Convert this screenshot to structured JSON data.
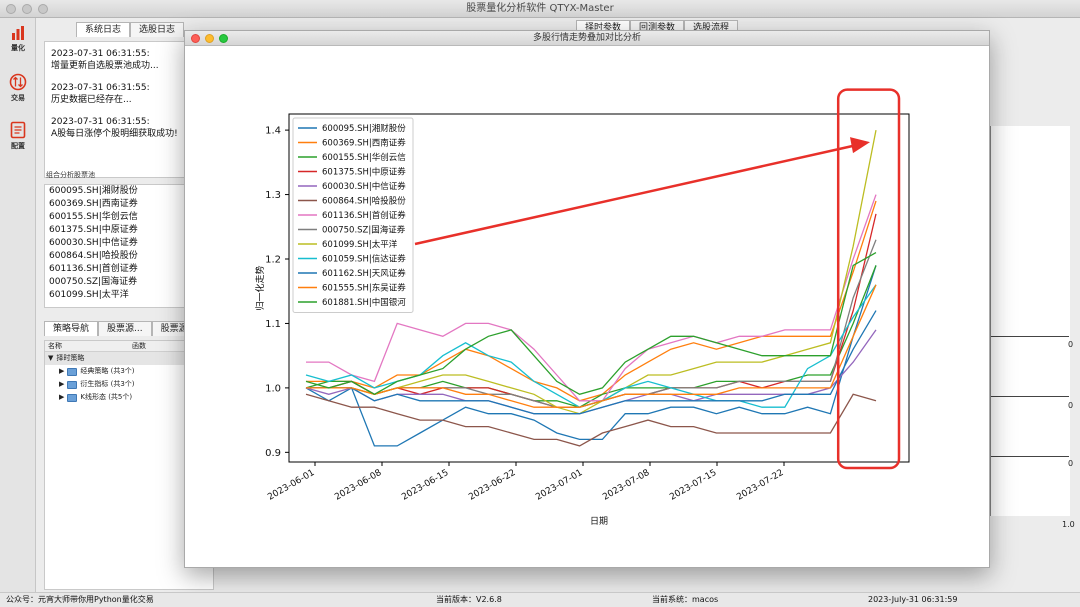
{
  "app": {
    "title": "股票量化分析软件 QTYX-Master"
  },
  "sidebar": {
    "items": [
      {
        "label": "量化",
        "icon": "bar-chart-icon"
      },
      {
        "label": "交易",
        "icon": "exchange-icon"
      },
      {
        "label": "配置",
        "icon": "document-icon"
      }
    ]
  },
  "left": {
    "tabs": [
      "系统日志",
      "选股日志"
    ],
    "logs": [
      {
        "time": "2023-07-31 06:31:55:",
        "text": "增量更新自选股票池成功..."
      },
      {
        "time": "2023-07-31 06:31:55:",
        "text": "历史数据已经存在..."
      },
      {
        "time": "2023-07-31 06:31:55:",
        "text": "A股每日涨停个股明细获取成功!"
      }
    ],
    "pool_title": "组合分析股票池",
    "pool": [
      "600095.SH|湘财股份",
      "600369.SH|西南证券",
      "600155.SH|华创云信",
      "601375.SH|中原证券",
      "600030.SH|中信证券",
      "600864.SH|哈投股份",
      "601136.SH|首创证券",
      "000750.SZ|国海证券",
      "601099.SH|太平洋"
    ],
    "strategy_tabs": [
      "策略导航",
      "股票源...",
      "股票源"
    ],
    "grid_headers": [
      "名称",
      "函数"
    ],
    "tree": {
      "root": "择时策略",
      "children": [
        "经典策略 (共3个)",
        "衍生指标 (共3个)",
        "K线形态 (共5个)"
      ]
    }
  },
  "right_tabs": [
    "择时参数",
    "回测参数",
    "选股流程"
  ],
  "bg_ticks": [
    "0",
    "0",
    "0",
    "1.0"
  ],
  "modal": {
    "title": "多股行情走势叠加对比分析"
  },
  "chart_data": {
    "type": "line",
    "xlabel": "日期",
    "ylabel": "归一化走势",
    "ylim": [
      0.885,
      1.425
    ],
    "yticks": [
      0.9,
      1.0,
      1.1,
      1.2,
      1.3,
      1.4
    ],
    "xticklabels": [
      "2023-06-01",
      "2023-06-08",
      "2023-06-15",
      "2023-06-22",
      "2023-07-01",
      "2023-07-08",
      "2023-07-15",
      "2023-07-22"
    ],
    "legend_position": "upper-left",
    "series": [
      {
        "name": "600095.SH|湘财股份",
        "color": "#1f77b4",
        "values": [
          1.0,
          0.98,
          1.0,
          0.91,
          0.91,
          0.93,
          0.95,
          0.97,
          0.96,
          0.96,
          0.95,
          0.93,
          0.92,
          0.92,
          0.96,
          0.96,
          0.97,
          0.97,
          0.96,
          0.97,
          0.96,
          0.96,
          0.97,
          0.96,
          1.08,
          1.19
        ]
      },
      {
        "name": "600369.SH|西南证券",
        "color": "#ff7f0e",
        "values": [
          1.01,
          1.01,
          1.01,
          1.0,
          1.02,
          1.02,
          1.04,
          1.06,
          1.05,
          1.03,
          1.01,
          1.0,
          0.98,
          0.99,
          1.02,
          1.04,
          1.06,
          1.07,
          1.06,
          1.07,
          1.08,
          1.08,
          1.08,
          1.08,
          1.18,
          1.29
        ]
      },
      {
        "name": "600155.SH|华创云信",
        "color": "#2ca02c",
        "values": [
          1.0,
          1.01,
          1.01,
          0.99,
          1.0,
          1.0,
          1.01,
          1.0,
          1.0,
          0.99,
          0.98,
          0.98,
          0.97,
          0.99,
          1.0,
          1.0,
          1.0,
          1.0,
          1.01,
          1.01,
          1.01,
          1.01,
          1.02,
          1.02,
          1.1,
          1.19
        ]
      },
      {
        "name": "601375.SH|中原证券",
        "color": "#d62728",
        "values": [
          1.0,
          1.0,
          1.01,
          0.99,
          1.0,
          0.99,
          1.0,
          1.0,
          1.0,
          0.99,
          0.98,
          0.97,
          0.97,
          0.98,
          0.99,
          0.99,
          1.0,
          1.0,
          1.0,
          1.01,
          1.0,
          1.01,
          1.01,
          1.01,
          1.12,
          1.27
        ]
      },
      {
        "name": "600030.SH|中信证券",
        "color": "#9467bd",
        "values": [
          1.0,
          0.99,
          1.0,
          0.98,
          0.99,
          0.99,
          0.99,
          0.98,
          0.98,
          0.97,
          0.96,
          0.96,
          0.96,
          0.97,
          0.98,
          0.99,
          0.99,
          0.98,
          0.99,
          0.99,
          0.99,
          0.99,
          0.99,
          1.0,
          1.04,
          1.09
        ]
      },
      {
        "name": "600864.SH|哈投股份",
        "color": "#8c564b",
        "values": [
          0.99,
          0.98,
          0.97,
          0.97,
          0.96,
          0.95,
          0.95,
          0.94,
          0.94,
          0.93,
          0.92,
          0.92,
          0.91,
          0.93,
          0.94,
          0.95,
          0.94,
          0.94,
          0.93,
          0.93,
          0.93,
          0.93,
          0.93,
          0.93,
          0.99,
          0.98
        ]
      },
      {
        "name": "601136.SH|首创证券",
        "color": "#e377c2",
        "values": [
          1.04,
          1.04,
          1.02,
          1.01,
          1.1,
          1.09,
          1.08,
          1.1,
          1.1,
          1.09,
          1.06,
          1.02,
          0.98,
          0.98,
          1.03,
          1.06,
          1.07,
          1.08,
          1.07,
          1.08,
          1.08,
          1.09,
          1.09,
          1.09,
          1.2,
          1.3
        ]
      },
      {
        "name": "000750.SZ|国海证券",
        "color": "#7f7f7f",
        "values": [
          1.0,
          1.0,
          1.0,
          0.99,
          1.0,
          1.0,
          1.0,
          1.0,
          0.99,
          0.99,
          0.98,
          0.97,
          0.97,
          0.98,
          0.99,
          0.99,
          1.0,
          1.0,
          1.0,
          1.01,
          1.01,
          1.01,
          1.01,
          1.01,
          1.14,
          1.23
        ]
      },
      {
        "name": "601099.SH|太平洋",
        "color": "#bcbd22",
        "values": [
          1.0,
          1.0,
          1.0,
          0.99,
          1.0,
          1.01,
          1.02,
          1.02,
          1.01,
          1.0,
          0.99,
          0.97,
          0.96,
          0.98,
          1.0,
          1.02,
          1.02,
          1.03,
          1.04,
          1.04,
          1.04,
          1.05,
          1.06,
          1.07,
          1.22,
          1.4
        ]
      },
      {
        "name": "601059.SH|信达证券",
        "color": "#17becf",
        "values": [
          1.02,
          1.01,
          1.02,
          1.0,
          1.01,
          1.02,
          1.05,
          1.07,
          1.05,
          1.04,
          1.01,
          0.99,
          0.97,
          0.98,
          1.0,
          1.01,
          1.0,
          0.99,
          0.98,
          0.98,
          0.97,
          0.97,
          1.03,
          1.05,
          1.11,
          1.16
        ]
      },
      {
        "name": "601162.SH|天风证券",
        "color": "#1f77b4",
        "values": [
          1.0,
          1.0,
          1.0,
          0.98,
          0.99,
          0.98,
          0.98,
          0.98,
          0.98,
          0.97,
          0.96,
          0.96,
          0.96,
          0.97,
          0.98,
          0.98,
          0.98,
          0.98,
          0.98,
          0.98,
          0.98,
          0.99,
          0.99,
          0.99,
          1.06,
          1.12
        ]
      },
      {
        "name": "601555.SH|东吴证券",
        "color": "#ff7f0e",
        "values": [
          1.0,
          1.0,
          1.0,
          0.99,
          1.0,
          1.0,
          1.0,
          0.99,
          0.99,
          0.98,
          0.97,
          0.97,
          0.97,
          0.98,
          0.99,
          0.99,
          0.99,
          0.99,
          0.99,
          1.0,
          1.0,
          1.0,
          1.0,
          1.0,
          1.08,
          1.16
        ]
      },
      {
        "name": "601881.SH|中国银河",
        "color": "#2ca02c",
        "values": [
          1.01,
          1.0,
          1.01,
          0.99,
          1.01,
          1.02,
          1.03,
          1.06,
          1.08,
          1.09,
          1.05,
          1.01,
          0.99,
          1.0,
          1.04,
          1.06,
          1.08,
          1.08,
          1.07,
          1.06,
          1.05,
          1.05,
          1.05,
          1.05,
          1.19,
          1.21
        ]
      }
    ]
  },
  "annotation": {
    "highlight_color": "#e8302a",
    "arrow_color": "#e8302a"
  },
  "status": {
    "left": "公众号：元宵大师带你用Python量化交易",
    "version": "当前版本：V2.6.8",
    "system": "当前系统：macos",
    "time": "2023-July-31 06:31:59"
  }
}
